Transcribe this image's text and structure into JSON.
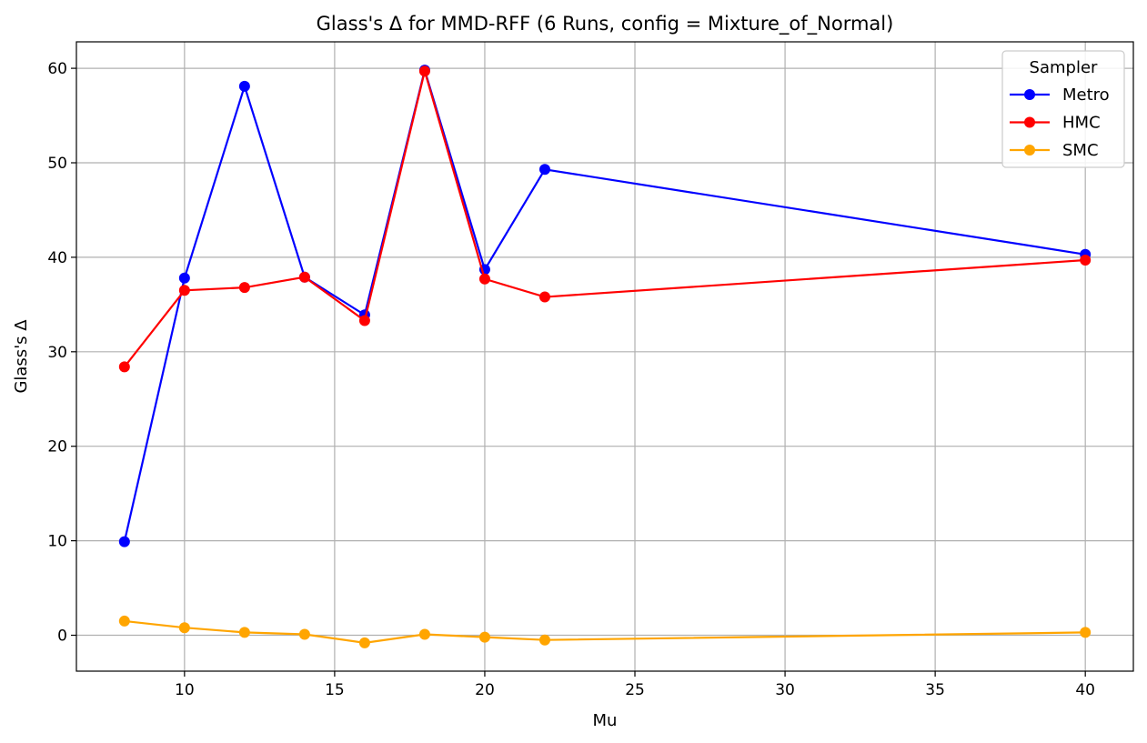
{
  "chart_data": {
    "type": "line",
    "title": "Glass's Δ for MMD-RFF (6 Runs, config = Mixture_of_Normal)",
    "xlabel": "Mu",
    "ylabel": "Glass's Δ",
    "xlim": [
      6.4,
      41.6
    ],
    "ylim": [
      -3.8,
      62.8
    ],
    "xticks": [
      10,
      15,
      20,
      25,
      30,
      35,
      40
    ],
    "yticks": [
      0,
      10,
      20,
      30,
      40,
      50,
      60
    ],
    "grid": true,
    "legend": {
      "title": "Sampler",
      "position": "top-right"
    },
    "x": [
      8,
      10,
      12,
      14,
      16,
      18,
      20,
      22,
      40
    ],
    "series": [
      {
        "name": "Metro",
        "color": "#0000ff",
        "values": [
          9.9,
          37.8,
          58.1,
          37.9,
          33.9,
          59.8,
          38.7,
          49.3,
          40.3
        ]
      },
      {
        "name": "HMC",
        "color": "#ff0000",
        "values": [
          28.4,
          36.5,
          36.8,
          37.9,
          33.3,
          59.7,
          37.7,
          35.8,
          39.7
        ]
      },
      {
        "name": "SMC",
        "color": "#ffa500",
        "values": [
          1.5,
          0.8,
          0.3,
          0.1,
          -0.8,
          0.1,
          -0.2,
          -0.5,
          0.3
        ]
      }
    ]
  }
}
